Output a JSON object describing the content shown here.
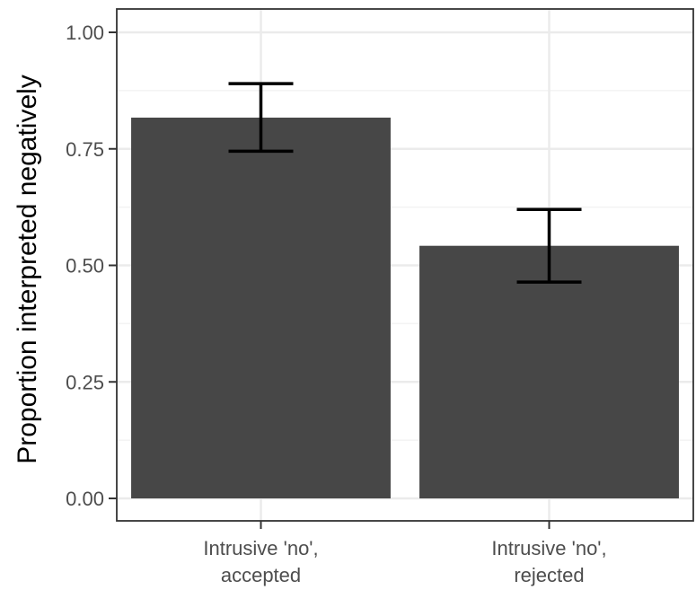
{
  "chart_data": {
    "type": "bar",
    "title": "",
    "xlabel": "",
    "ylabel": "Proportion interpreted negatively",
    "categories": [
      [
        "Intrusive 'no',",
        "accepted"
      ],
      [
        "Intrusive 'no',",
        "rejected"
      ]
    ],
    "values": [
      0.817,
      0.542
    ],
    "error_bars": [
      {
        "low": 0.745,
        "high": 0.89
      },
      {
        "low": 0.464,
        "high": 0.62
      }
    ],
    "ylim": [
      0,
      1.05
    ],
    "yticks": [
      0.0,
      0.25,
      0.5,
      0.75,
      1.0
    ],
    "ytick_labels": [
      "0.00",
      "0.25",
      "0.50",
      "0.75",
      "1.00"
    ],
    "grid": true,
    "colors": {
      "bar": "#474747",
      "panel_border": "#333333",
      "grid_major": "#ebebeb",
      "grid_minor": "#f3f3f3",
      "error_bar": "#000000"
    }
  }
}
